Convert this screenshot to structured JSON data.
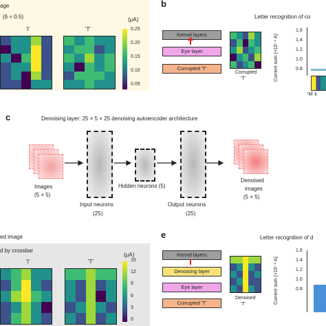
{
  "panel_a": {
    "header": "age",
    "delta": "(δ = 0.5)",
    "label_I": "'I'",
    "label_T": "'T'",
    "unit": "(μA)",
    "colorbar_ticks": [
      "0.25",
      "0.20",
      "0.15",
      "0.10",
      "0.05"
    ],
    "grid_I": [
      [
        1,
        2,
        2,
        4,
        1
      ],
      [
        0,
        2,
        2,
        5,
        1
      ],
      [
        2,
        0,
        3,
        5,
        1
      ],
      [
        1,
        2,
        2,
        5,
        1
      ],
      [
        1,
        2,
        0,
        4,
        1
      ],
      [
        1,
        1,
        0,
        2,
        2
      ]
    ],
    "grid_T": [
      [
        3,
        2,
        3,
        2,
        2
      ],
      [
        2,
        3,
        3,
        1,
        2
      ],
      [
        3,
        2,
        4,
        2,
        3
      ],
      [
        2,
        0,
        3,
        2,
        3
      ],
      [
        1,
        3,
        3,
        3,
        2
      ],
      [
        2,
        2,
        3,
        2,
        2
      ]
    ]
  },
  "panel_b": {
    "letter": "b",
    "title": "Letter recognition of co",
    "kernel": "Kernel layers",
    "eye": "Eye layer",
    "corrupted": "Corrupted 'T'",
    "img_caption_1": "Corrupted",
    "img_caption_2": "'T'",
    "ylabel": "Current sum (×10⁻⁴ A)",
    "yticks": [
      "1.6",
      "1.4",
      "1.2",
      "1.0",
      "0.8"
    ],
    "xlabel": "'M' k",
    "grid": [
      [
        3,
        2,
        1,
        4,
        2
      ],
      [
        1,
        3,
        0,
        3,
        2
      ],
      [
        2,
        4,
        1,
        2,
        3
      ],
      [
        0,
        2,
        3,
        1,
        4
      ],
      [
        3,
        1,
        2,
        3,
        0
      ]
    ]
  },
  "panel_c": {
    "letter": "c",
    "title": "Denoising layer: 25 × 5 × 25 denoising autoencoder architecture",
    "images": "Images",
    "images_dim": "(5 × 5)",
    "input": "Input neurons",
    "input_n": "(25)",
    "hidden": "Hidden neurons (5)",
    "output": "Output neurons",
    "output_n": "(25)",
    "denoised": "Denoised",
    "denoised_2": "images",
    "denoised_dim": "(5 × 5)"
  },
  "panel_d": {
    "header": "ed image",
    "subheader": "d by crossbar",
    "label_I": "'I'",
    "label_T": "'T'",
    "unit": "(μA)",
    "colorbar_ticks": [
      "15",
      "12",
      "9",
      "6",
      "3",
      "0"
    ],
    "grid_I": [
      [
        2,
        3,
        4,
        2,
        2
      ],
      [
        1,
        3,
        5,
        2,
        1
      ],
      [
        2,
        4,
        5,
        3,
        2
      ],
      [
        1,
        2,
        4,
        2,
        0
      ],
      [
        1,
        3,
        4,
        2,
        1
      ]
    ],
    "grid_T": [
      [
        3,
        3,
        4,
        3,
        3
      ],
      [
        2,
        1,
        4,
        1,
        2
      ],
      [
        2,
        1,
        4,
        0,
        2
      ],
      [
        1,
        2,
        4,
        2,
        1
      ],
      [
        2,
        1,
        4,
        1,
        2
      ]
    ]
  },
  "panel_e": {
    "letter": "e",
    "title": "Letter recognition of d",
    "kernel": "Kernel layers",
    "denoising": "Denoising layer",
    "eye": "Eye layer",
    "corrupted": "Corrupted 'T'",
    "img_caption_1": "Denoised",
    "img_caption_2": "'T'",
    "ylabel": "Current sum (×10⁻⁴ A)",
    "yticks": [
      "1.6",
      "1.4",
      "1.2",
      "1.0",
      "0.8"
    ],
    "grid": [
      [
        4,
        4,
        5,
        4,
        4
      ],
      [
        1,
        2,
        5,
        2,
        1
      ],
      [
        2,
        1,
        5,
        1,
        2
      ],
      [
        1,
        2,
        5,
        1,
        1
      ],
      [
        2,
        1,
        5,
        2,
        1
      ]
    ]
  },
  "colors": {
    "viridis": [
      "#440154",
      "#3b528b",
      "#21918c",
      "#3fbc73",
      "#9dd93b",
      "#fde725"
    ],
    "kernel": "#9e9e9e",
    "eye": "#f0a6e8",
    "corrupted": "#f6b48a",
    "denoising": "#f8e27a",
    "panel_bg": "#fdf9e4"
  }
}
